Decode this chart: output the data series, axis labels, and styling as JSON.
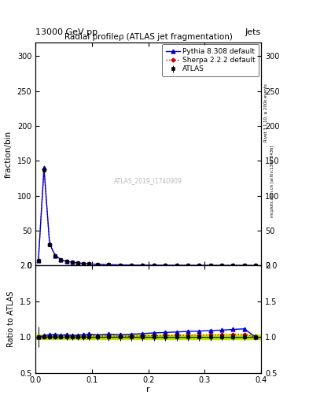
{
  "title": "Radial profileρ (ATLAS jet fragmentation)",
  "header_left": "13000 GeV pp",
  "header_right": "Jets",
  "right_label_top": "Rivet 3.1.10, ≥ 200k events",
  "right_label_bot": "mcplots.cern.ch [arXiv:1306.3436]",
  "watermark": "ATLAS_2019_I1740909",
  "ylabel_main": "fraction/bin",
  "ylabel_ratio": "Ratio to ATLAS",
  "xlabel": "r",
  "xlim": [
    0.0,
    0.4
  ],
  "ylim_main": [
    0,
    320
  ],
  "ylim_ratio": [
    0.5,
    2.0
  ],
  "yticks_main": [
    0,
    50,
    100,
    150,
    200,
    250,
    300
  ],
  "yticks_ratio": [
    0.5,
    1.0,
    1.5,
    2.0
  ],
  "xticks": [
    0.0,
    0.1,
    0.2,
    0.3,
    0.4
  ],
  "r_values": [
    0.005,
    0.015,
    0.025,
    0.035,
    0.045,
    0.055,
    0.065,
    0.075,
    0.085,
    0.095,
    0.11,
    0.13,
    0.15,
    0.17,
    0.19,
    0.21,
    0.23,
    0.25,
    0.27,
    0.29,
    0.31,
    0.33,
    0.35,
    0.37,
    0.39
  ],
  "atlas_values": [
    7,
    137,
    30,
    14,
    8.5,
    6.0,
    4.8,
    3.8,
    3.0,
    2.4,
    1.7,
    1.2,
    0.95,
    0.75,
    0.62,
    0.52,
    0.47,
    0.42,
    0.38,
    0.36,
    0.33,
    0.31,
    0.28,
    0.26,
    0.24
  ],
  "atlas_errors": [
    1,
    3,
    1,
    0.5,
    0.3,
    0.25,
    0.2,
    0.15,
    0.12,
    0.1,
    0.08,
    0.06,
    0.05,
    0.04,
    0.035,
    0.03,
    0.025,
    0.022,
    0.02,
    0.018,
    0.016,
    0.014,
    0.013,
    0.012,
    0.01
  ],
  "pythia_values": [
    7,
    140,
    31,
    14.5,
    8.7,
    6.2,
    4.9,
    3.9,
    3.1,
    2.5,
    1.75,
    1.25,
    0.98,
    0.78,
    0.65,
    0.55,
    0.5,
    0.45,
    0.41,
    0.39,
    0.36,
    0.34,
    0.31,
    0.29,
    0.24
  ],
  "sherpa_values": [
    7,
    138,
    30.5,
    14.2,
    8.6,
    6.1,
    4.85,
    3.85,
    3.05,
    2.45,
    1.72,
    1.22,
    0.96,
    0.76,
    0.63,
    0.53,
    0.48,
    0.43,
    0.39,
    0.37,
    0.34,
    0.32,
    0.29,
    0.27,
    0.24
  ],
  "pythia_ratio": [
    1.0,
    1.022,
    1.033,
    1.036,
    1.024,
    1.033,
    1.021,
    1.026,
    1.033,
    1.042,
    1.029,
    1.042,
    1.032,
    1.04,
    1.048,
    1.058,
    1.064,
    1.071,
    1.079,
    1.083,
    1.091,
    1.097,
    1.107,
    1.115,
    1.0
  ],
  "sherpa_ratio": [
    1.0,
    1.007,
    1.017,
    1.014,
    1.012,
    1.017,
    1.01,
    1.013,
    1.017,
    1.021,
    1.012,
    1.017,
    1.011,
    1.013,
    1.016,
    1.019,
    1.021,
    1.024,
    1.026,
    1.028,
    1.03,
    1.032,
    1.036,
    1.038,
    1.0
  ],
  "atlas_band_lo": 0.97,
  "atlas_band_hi": 1.03,
  "color_atlas": "#000000",
  "color_pythia": "#0000cc",
  "color_sherpa": "#cc0000",
  "color_band_outer": "#ccee00",
  "color_band_inner": "#88cc00",
  "background_color": "#ffffff"
}
